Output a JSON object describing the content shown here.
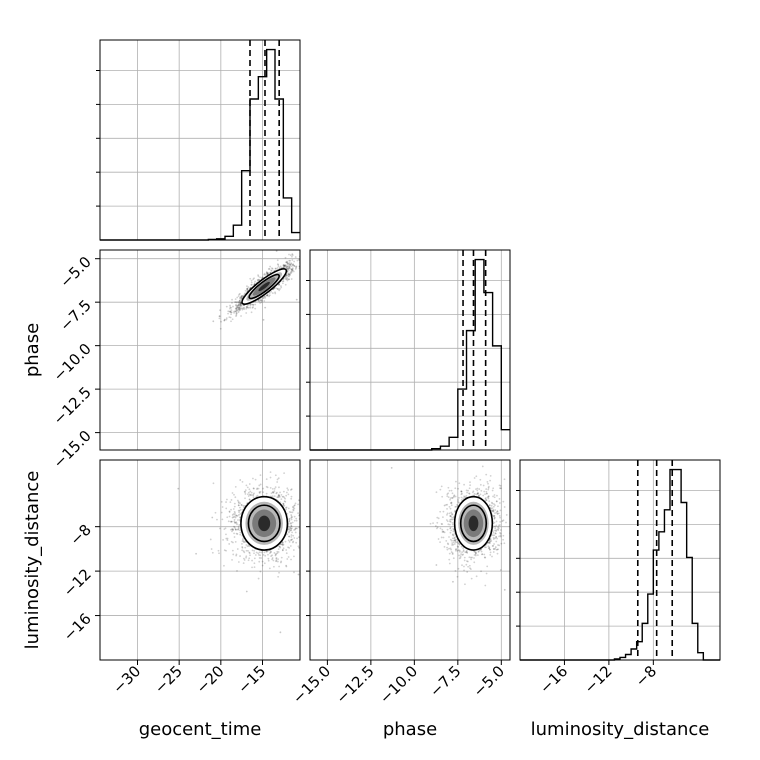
{
  "chart_data": {
    "type": "corner",
    "parameters": [
      {
        "name": "geocent_time",
        "range": [
          -34.5,
          -10.5
        ],
        "ticks": [
          -30,
          -25,
          -20,
          -15
        ],
        "tick_labels": [
          "−30",
          "−25",
          "−20",
          "−15"
        ]
      },
      {
        "name": "phase",
        "range": [
          -16.0,
          -4.5
        ],
        "ticks": [
          -15.0,
          -12.5,
          -10.0,
          -7.5,
          -5.0
        ],
        "tick_labels": [
          "−15.0",
          "−12.5",
          "−10.0",
          "−7.5",
          "−5.0"
        ]
      },
      {
        "name": "luminosity_distance",
        "range": [
          -20.0,
          -2.0
        ],
        "ticks": [
          -16,
          -12,
          -8
        ],
        "tick_labels": [
          "−16",
          "−12",
          "−8"
        ]
      }
    ],
    "grid": true,
    "quantile_lines": {
      "geocent_time": [
        -16.5,
        -14.7,
        -13.0
      ],
      "phase": [
        -7.2,
        -6.6,
        -5.9
      ],
      "luminosity_distance": [
        -9.4,
        -7.7,
        -6.3
      ]
    },
    "histograms": {
      "geocent_time": {
        "edges": [
          -34.5,
          -33.5,
          -32.5,
          -31.5,
          -30.5,
          -29.5,
          -28.5,
          -27.5,
          -26.5,
          -25.5,
          -24.5,
          -23.5,
          -22.5,
          -21.5,
          -20.5,
          -19.5,
          -18.5,
          -17.5,
          -16.5,
          -15.5,
          -14.5,
          -13.5,
          -12.5,
          -11.5,
          -10.5
        ],
        "counts": [
          0,
          0,
          0,
          0,
          0,
          0,
          0,
          0,
          0,
          0,
          0,
          0,
          0,
          0.2,
          0.5,
          1.5,
          6,
          28,
          57,
          66,
          77,
          57,
          17,
          3
        ]
      },
      "phase": {
        "edges": [
          -16.0,
          -15.5,
          -15.0,
          -14.5,
          -14.0,
          -13.5,
          -13.0,
          -12.5,
          -12.0,
          -11.5,
          -11.0,
          -10.5,
          -10.0,
          -9.5,
          -9.0,
          -8.5,
          -8.0,
          -7.5,
          -7.0,
          -6.5,
          -6.0,
          -5.5,
          -5.0,
          -4.5
        ],
        "counts": [
          0,
          0,
          0,
          0,
          0,
          0,
          0,
          0,
          0,
          0,
          0,
          0,
          0,
          0,
          0.5,
          1.5,
          5,
          24,
          47,
          75,
          62,
          41,
          8
        ]
      },
      "luminosity_distance": {
        "edges": [
          -20.0,
          -19.5,
          -19.0,
          -18.5,
          -18.0,
          -17.5,
          -17.0,
          -16.5,
          -16.0,
          -15.5,
          -15.0,
          -14.5,
          -14.0,
          -13.5,
          -13.0,
          -12.5,
          -12.0,
          -11.5,
          -11.0,
          -10.5,
          -10.0,
          -9.5,
          -9.0,
          -8.5,
          -8.0,
          -7.5,
          -7.0,
          -6.5,
          -6.0,
          -5.5,
          -5.0,
          -4.5,
          -4.0,
          -3.5,
          -3.0,
          -2.5,
          -2.0
        ],
        "counts": [
          0,
          0,
          0,
          0,
          0,
          0,
          0,
          0,
          0,
          0,
          0,
          0,
          0,
          0,
          0,
          0,
          0,
          0.3,
          0.7,
          1.5,
          3,
          5,
          10,
          18,
          30,
          35,
          41,
          52,
          52,
          43,
          28,
          10,
          2,
          0,
          0,
          0
        ]
      }
    },
    "panels_2d": [
      {
        "x": "geocent_time",
        "y": "phase",
        "mean": [
          -14.8,
          -6.6
        ],
        "sd": [
          1.7,
          0.7
        ],
        "rho": 0.9,
        "levels": [
          0.4,
          0.86
        ]
      },
      {
        "x": "geocent_time",
        "y": "luminosity_distance",
        "mean": [
          -14.8,
          -7.7
        ],
        "sd": [
          1.8,
          1.55
        ],
        "rho": 0.0,
        "levels": [
          0.4,
          0.86
        ]
      },
      {
        "x": "phase",
        "y": "luminosity_distance",
        "mean": [
          -6.6,
          -7.7
        ],
        "sd": [
          0.7,
          1.55
        ],
        "rho": 0.0,
        "levels": [
          0.4,
          0.86
        ]
      }
    ]
  }
}
